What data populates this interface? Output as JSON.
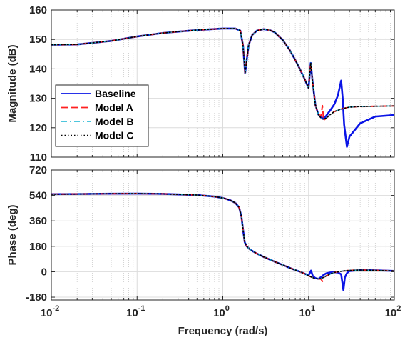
{
  "chart_data": [
    {
      "type": "line",
      "panel": "magnitude",
      "ylabel": "Magnitude (dB)",
      "xlabel": "",
      "xscale": "log",
      "xlim": [
        0.01,
        100
      ],
      "ylim": [
        110,
        160
      ],
      "xticks": [
        0.01,
        0.1,
        1,
        10,
        100
      ],
      "xtick_base": "10",
      "xtick_exponents": [
        "-2",
        "-1",
        "0",
        "1",
        "2"
      ],
      "xtick_labels_shown": false,
      "yticks": [
        110,
        120,
        130,
        140,
        150,
        160
      ],
      "ytick_labels": [
        "110",
        "120",
        "130",
        "140",
        "150",
        "160"
      ],
      "grid": true,
      "minor_grid": true,
      "legend": {
        "position": "middle-left",
        "entries": [
          "Baseline",
          "Model A",
          "Model B",
          "Model C"
        ]
      },
      "series": [
        {
          "name": "Baseline",
          "style": "solid",
          "x": [
            0.01,
            0.02,
            0.05,
            0.1,
            0.2,
            0.5,
            1,
            1.4,
            1.6,
            1.72,
            1.82,
            1.9,
            2.0,
            2.2,
            2.5,
            3,
            3.5,
            4,
            5,
            6,
            7,
            8,
            9,
            10,
            10.6,
            11.2,
            12,
            13,
            14,
            15,
            16,
            18,
            20,
            22,
            24,
            25,
            26,
            28,
            30,
            40,
            60,
            100
          ],
          "y": [
            148.2,
            148.3,
            149.5,
            151,
            152.2,
            153.2,
            153.7,
            153.7,
            153,
            148,
            138.5,
            143,
            148,
            151.5,
            153,
            153.5,
            153.2,
            152.5,
            149.8,
            146.5,
            143,
            139.7,
            136.5,
            133.5,
            142,
            135,
            127.8,
            124.5,
            123.5,
            123.3,
            124,
            126,
            128,
            131,
            136,
            130,
            121,
            113.5,
            117,
            121.5,
            123.8,
            124.3
          ]
        },
        {
          "name": "Model A",
          "style": "dashed",
          "x": [
            0.01,
            0.02,
            0.05,
            0.1,
            0.2,
            0.5,
            1,
            1.4,
            1.6,
            1.72,
            1.82,
            1.9,
            2.0,
            2.2,
            2.5,
            3,
            3.5,
            4,
            5,
            6,
            7,
            8,
            9,
            10,
            10.6,
            11.2,
            12,
            13,
            14,
            14.5,
            15,
            16,
            18,
            20,
            25,
            30,
            40,
            60,
            100
          ],
          "y": [
            148.2,
            148.3,
            149.5,
            151,
            152.2,
            153.2,
            153.7,
            153.7,
            153,
            148,
            138.5,
            143,
            148,
            151.5,
            153,
            153.5,
            153.2,
            152.5,
            149.8,
            146.5,
            143,
            139.7,
            136.5,
            133.5,
            142,
            135,
            127.8,
            124.5,
            124,
            127.5,
            122.5,
            123.2,
            124.5,
            125.5,
            126.5,
            127,
            127.2,
            127.3,
            127.4
          ]
        },
        {
          "name": "Model B",
          "style": "dashdot",
          "x": [
            0.01,
            0.02,
            0.05,
            0.1,
            0.2,
            0.5,
            1,
            1.4,
            1.6,
            1.72,
            1.82,
            1.9,
            2.0,
            2.2,
            2.5,
            3,
            3.5,
            4,
            5,
            6,
            7,
            8,
            9,
            10,
            10.6,
            11.2,
            12,
            13,
            14,
            15,
            16,
            18,
            20,
            25,
            30,
            40,
            60,
            100
          ],
          "y": [
            148.2,
            148.3,
            149.5,
            151,
            152.2,
            153.2,
            153.7,
            153.7,
            153,
            148,
            138.5,
            143,
            148,
            151.5,
            153,
            153.5,
            153.2,
            152.5,
            149.8,
            146.5,
            143,
            139.7,
            136.5,
            133.5,
            142,
            135,
            127.8,
            124.5,
            123.2,
            122.8,
            123.3,
            124.5,
            125.5,
            126.5,
            127,
            127.2,
            127.3,
            127.4
          ]
        },
        {
          "name": "Model C",
          "style": "dotted",
          "x": [
            0.01,
            0.02,
            0.05,
            0.1,
            0.2,
            0.5,
            1,
            1.4,
            1.6,
            1.72,
            1.82,
            1.9,
            2.0,
            2.2,
            2.5,
            3,
            3.5,
            4,
            5,
            6,
            7,
            8,
            9,
            10,
            10.6,
            11.2,
            12,
            13,
            14,
            15,
            16,
            18,
            20,
            25,
            30,
            40,
            60,
            100
          ],
          "y": [
            148.2,
            148.3,
            149.5,
            151,
            152.2,
            153.2,
            153.7,
            153.7,
            153,
            148,
            138.5,
            143,
            148,
            151.5,
            153,
            153.5,
            153.2,
            152.5,
            149.8,
            146.5,
            143,
            139.7,
            136.5,
            133.5,
            142,
            135,
            127.8,
            124.5,
            123.2,
            122.8,
            123.3,
            124.5,
            125.5,
            126.5,
            127,
            127.2,
            127.3,
            127.4
          ]
        }
      ]
    },
    {
      "type": "line",
      "panel": "phase",
      "ylabel": "Phase (deg)",
      "xlabel": "Frequency  (rad/s)",
      "xscale": "log",
      "xlim": [
        0.01,
        100
      ],
      "ylim": [
        -200,
        720
      ],
      "xticks": [
        0.01,
        0.1,
        1,
        10,
        100
      ],
      "xtick_base": "10",
      "xtick_exponents": [
        "-2",
        "-1",
        "0",
        "1",
        "2"
      ],
      "yticks": [
        -180,
        0,
        180,
        360,
        540,
        720
      ],
      "ytick_labels": [
        "-180",
        "0",
        "180",
        "360",
        "540",
        "720"
      ],
      "grid": true,
      "minor_grid": true,
      "series": [
        {
          "name": "Baseline",
          "style": "solid",
          "x": [
            0.01,
            0.02,
            0.05,
            0.1,
            0.2,
            0.5,
            0.8,
            1,
            1.2,
            1.4,
            1.55,
            1.65,
            1.72,
            1.8,
            1.9,
            2.1,
            2.5,
            3,
            4,
            5,
            6,
            7,
            8,
            9,
            10,
            10.7,
            11.2,
            12,
            13,
            14,
            15,
            16,
            18,
            20,
            22,
            24,
            25.5,
            26.5,
            28,
            30,
            40,
            60,
            100
          ],
          "y": [
            549,
            550,
            552,
            553,
            551,
            543,
            532,
            522,
            508,
            487,
            455,
            390,
            300,
            210,
            180,
            155,
            128,
            105,
            72,
            48,
            28,
            12,
            0,
            -14,
            -25,
            8,
            -30,
            -45,
            -50,
            -38,
            -22,
            -12,
            -5,
            -3,
            -5,
            -18,
            -130,
            -40,
            -10,
            5,
            12,
            10,
            6
          ]
        },
        {
          "name": "Model A",
          "style": "dashed",
          "x": [
            0.01,
            0.02,
            0.05,
            0.1,
            0.2,
            0.5,
            0.8,
            1,
            1.2,
            1.4,
            1.55,
            1.65,
            1.72,
            1.8,
            1.9,
            2.1,
            2.5,
            3,
            4,
            5,
            6,
            7,
            8,
            9,
            10,
            11,
            12,
            13,
            14,
            14.5,
            15,
            16,
            18,
            20,
            25,
            30,
            40,
            60,
            100
          ],
          "y": [
            549,
            550,
            552,
            553,
            551,
            543,
            532,
            522,
            508,
            487,
            455,
            390,
            300,
            210,
            180,
            155,
            128,
            105,
            72,
            48,
            28,
            12,
            0,
            -14,
            -28,
            -40,
            -48,
            -50,
            -52,
            -68,
            -40,
            -30,
            -16,
            -5,
            5,
            10,
            12,
            10,
            6
          ]
        },
        {
          "name": "Model B",
          "style": "dashdot",
          "x": [
            0.01,
            0.02,
            0.05,
            0.1,
            0.2,
            0.5,
            0.8,
            1,
            1.2,
            1.4,
            1.55,
            1.65,
            1.72,
            1.8,
            1.9,
            2.1,
            2.5,
            3,
            4,
            5,
            6,
            7,
            8,
            9,
            10,
            11,
            12,
            13,
            14,
            15,
            16,
            18,
            20,
            25,
            30,
            40,
            60,
            100
          ],
          "y": [
            549,
            550,
            552,
            553,
            551,
            543,
            532,
            522,
            508,
            487,
            455,
            390,
            300,
            210,
            180,
            155,
            128,
            105,
            72,
            48,
            28,
            12,
            0,
            -14,
            -28,
            -40,
            -48,
            -50,
            -48,
            -40,
            -30,
            -16,
            -5,
            5,
            10,
            12,
            10,
            6
          ]
        },
        {
          "name": "Model C",
          "style": "dotted",
          "x": [
            0.01,
            0.02,
            0.05,
            0.1,
            0.2,
            0.5,
            0.8,
            1,
            1.2,
            1.4,
            1.55,
            1.65,
            1.72,
            1.8,
            1.9,
            2.1,
            2.5,
            3,
            4,
            5,
            6,
            7,
            8,
            9,
            10,
            11,
            12,
            13,
            14,
            15,
            16,
            18,
            20,
            25,
            30,
            40,
            60,
            100
          ],
          "y": [
            549,
            550,
            552,
            553,
            551,
            543,
            532,
            522,
            508,
            487,
            455,
            390,
            300,
            210,
            180,
            155,
            128,
            105,
            72,
            48,
            28,
            12,
            0,
            -14,
            -28,
            -40,
            -48,
            -50,
            -48,
            -40,
            -30,
            -16,
            -5,
            5,
            10,
            12,
            10,
            6
          ]
        }
      ]
    }
  ],
  "colors": {
    "Baseline": "#0a14e6",
    "Model A": "#ff2020",
    "Model B": "#14b4d2",
    "Model C": "#000000",
    "axis": "#262626",
    "grid": "#dcdcdc"
  }
}
